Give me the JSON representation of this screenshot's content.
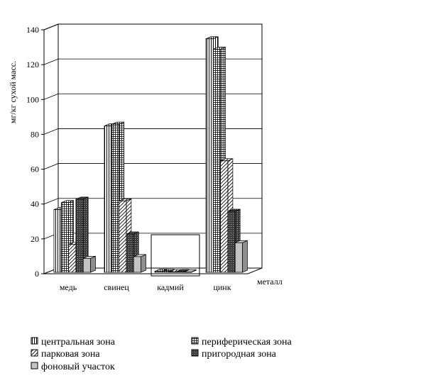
{
  "chart_data": {
    "type": "bar",
    "ylabel": "мг/кг сухой масс.",
    "xlabel": "металл",
    "ylim": [
      0,
      140
    ],
    "yticks": [
      0,
      20,
      40,
      60,
      80,
      100,
      120,
      140
    ],
    "grid": true,
    "legend_position": "bottom",
    "categories": [
      "медь",
      "свинец",
      "кадмий",
      "цинк"
    ],
    "series": [
      {
        "name": "центральная зона",
        "pattern": "vertical-lines",
        "values": [
          36,
          84,
          0.6,
          134
        ]
      },
      {
        "name": "периферическая зона",
        "pattern": "grid",
        "values": [
          40,
          85,
          0.5,
          128
        ]
      },
      {
        "name": "парковая зона",
        "pattern": "diagonal-lines",
        "values": [
          16,
          41,
          0.3,
          64
        ]
      },
      {
        "name": "пригородная зона",
        "pattern": "dense-crosshatch",
        "values": [
          42,
          22,
          0.4,
          35
        ]
      },
      {
        "name": "фоновый участок",
        "pattern": "gray",
        "values": [
          8,
          9,
          0.2,
          17
        ]
      }
    ]
  }
}
